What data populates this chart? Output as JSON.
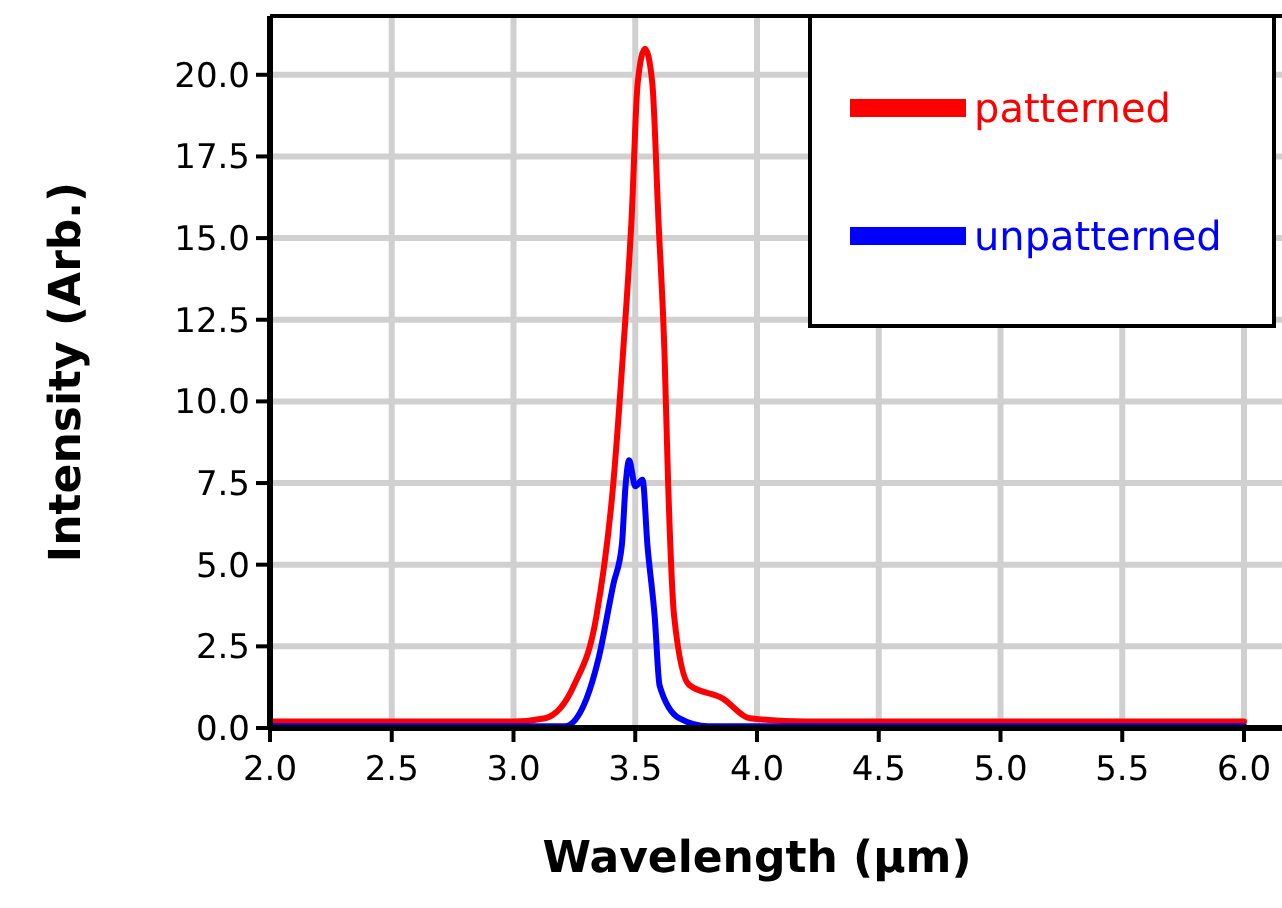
{
  "chart_data": {
    "type": "line",
    "xlabel": "Wavelength (µm)",
    "ylabel": "Intensity (Arb.)",
    "xlim": [
      2,
      6
    ],
    "xticks": [
      {
        "value": 2,
        "label": "2.0"
      },
      {
        "value": 2.5,
        "label": "2.5"
      },
      {
        "value": 3,
        "label": "3.0"
      },
      {
        "value": 3.5,
        "label": "3.5"
      },
      {
        "value": 4,
        "label": "4.0"
      },
      {
        "value": 4.5,
        "label": "4.5"
      },
      {
        "value": 5,
        "label": "5.0"
      },
      {
        "value": 5.5,
        "label": "5.5"
      },
      {
        "value": 6,
        "label": "6.0"
      }
    ],
    "ylim": [
      0,
      21.8
    ],
    "yticks": [
      {
        "value": 0,
        "label": "0.0"
      },
      2.5,
      {
        "value": 5,
        "label": "5.0"
      },
      7.5,
      {
        "value": 10,
        "label": "10.0"
      },
      12.5,
      {
        "value": 15,
        "label": "15.0"
      },
      17.5,
      {
        "value": 20,
        "label": "20.0"
      }
    ],
    "grid": true,
    "legend": "top right",
    "marker": "none",
    "line_style": "solid",
    "series": [
      {
        "name": "patterned",
        "color": "#ff0000",
        "x": [
          2,
          2.5,
          3,
          3.13,
          3.25,
          3.34,
          3.41,
          3.45,
          3.485,
          3.51,
          3.54,
          3.57,
          3.595,
          3.62,
          3.635,
          3.66,
          3.72,
          3.86,
          3.97,
          4.2,
          4.5,
          5,
          5.5,
          6
        ],
        "values": [
          0.2,
          0.2,
          0.2,
          0.3,
          1.33,
          3.4,
          7.5,
          11.5,
          15.6,
          19.75,
          20.8,
          19.75,
          15.6,
          11.5,
          7.5,
          3.4,
          1.33,
          0.9,
          0.3,
          0.2,
          0.2,
          0.2,
          0.2,
          0.2
        ]
      },
      {
        "name": "unpatterned",
        "color": "#0000ff",
        "x": [
          2,
          2.5,
          3,
          3.21,
          3.3,
          3.35,
          3.41,
          3.445,
          3.46,
          3.475,
          3.5,
          3.53,
          3.55,
          3.58,
          3.6,
          3.68,
          3.8,
          4,
          4.5,
          5,
          5.5,
          6
        ],
        "values": [
          0.05,
          0.05,
          0.05,
          0.05,
          0.9,
          2.15,
          4.4,
          5.6,
          7.4,
          8.2,
          7.4,
          7.6,
          5.6,
          3.4,
          1.3,
          0.3,
          0.05,
          0.05,
          0.05,
          0.05,
          0.05,
          0.05
        ]
      }
    ]
  }
}
